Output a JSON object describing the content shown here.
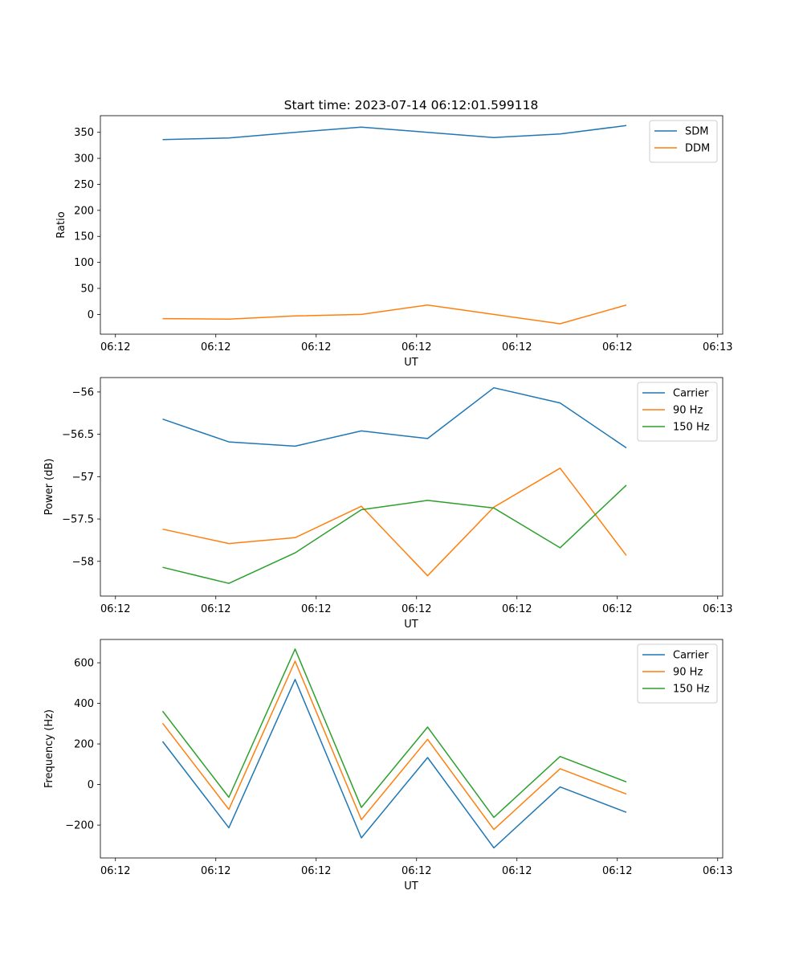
{
  "title": "Start time: 2023-07-14 06:12:01.599118",
  "colors": {
    "blue": "#1f77b4",
    "orange": "#ff7f0e",
    "green": "#2ca02c"
  },
  "chart_data": [
    {
      "type": "line",
      "id": "ratio",
      "xlabel": "UT",
      "ylabel": "Ratio",
      "xticks": [
        "06:12",
        "06:12",
        "06:12",
        "06:12",
        "06:12",
        "06:12",
        "06:13"
      ],
      "xrange": [
        -0.15,
        6.05
      ],
      "yticks": [
        0,
        50,
        100,
        150,
        200,
        250,
        300,
        350
      ],
      "yrange": [
        -38,
        382
      ],
      "x": [
        0.47,
        1.13,
        1.79,
        2.45,
        3.11,
        3.77,
        4.43,
        5.09
      ],
      "series": [
        {
          "name": "SDM",
          "color": "#1f77b4",
          "values": [
            336,
            339,
            350,
            360,
            350,
            340,
            347,
            363
          ]
        },
        {
          "name": "DDM",
          "color": "#ff7f0e",
          "values": [
            -8,
            -9,
            -3,
            0,
            18,
            0,
            -18,
            18
          ]
        }
      ]
    },
    {
      "type": "line",
      "id": "power",
      "xlabel": "UT",
      "ylabel": "Power (dB)",
      "xticks": [
        "06:12",
        "06:12",
        "06:12",
        "06:12",
        "06:12",
        "06:12",
        "06:13"
      ],
      "xrange": [
        -0.15,
        6.05
      ],
      "yticks": [
        -58.0,
        -57.5,
        -57.0,
        -56.5,
        -56.0
      ],
      "yrange": [
        -58.41,
        -55.83
      ],
      "x": [
        0.47,
        1.13,
        1.79,
        2.45,
        3.11,
        3.77,
        4.43,
        5.09
      ],
      "series": [
        {
          "name": "Carrier",
          "color": "#1f77b4",
          "values": [
            -56.32,
            -56.59,
            -56.64,
            -56.46,
            -56.55,
            -55.95,
            -56.13,
            -56.66
          ]
        },
        {
          "name": "90 Hz",
          "color": "#ff7f0e",
          "values": [
            -57.62,
            -57.79,
            -57.72,
            -57.35,
            -58.17,
            -57.36,
            -56.9,
            -57.93
          ]
        },
        {
          "name": "150 Hz",
          "color": "#2ca02c",
          "values": [
            -58.07,
            -58.26,
            -57.9,
            -57.39,
            -57.28,
            -57.37,
            -57.84,
            -57.1
          ]
        }
      ]
    },
    {
      "type": "line",
      "id": "frequency",
      "xlabel": "UT",
      "ylabel": "Frequency (Hz)",
      "xticks": [
        "06:12",
        "06:12",
        "06:12",
        "06:12",
        "06:12",
        "06:12",
        "06:13"
      ],
      "xrange": [
        -0.15,
        6.05
      ],
      "yticks": [
        -200,
        0,
        200,
        400,
        600
      ],
      "yrange": [
        -362,
        715
      ],
      "x": [
        0.47,
        1.13,
        1.79,
        2.45,
        3.11,
        3.77,
        4.43,
        5.09
      ],
      "series": [
        {
          "name": "Carrier",
          "color": "#1f77b4",
          "values": [
            212,
            -213,
            518,
            -263,
            133,
            -312,
            -12,
            -137
          ]
        },
        {
          "name": "90 Hz",
          "color": "#ff7f0e",
          "values": [
            302,
            -123,
            608,
            -173,
            223,
            -222,
            78,
            -47
          ]
        },
        {
          "name": "150 Hz",
          "color": "#2ca02c",
          "values": [
            362,
            -63,
            668,
            -113,
            283,
            -162,
            138,
            13
          ]
        }
      ]
    }
  ]
}
